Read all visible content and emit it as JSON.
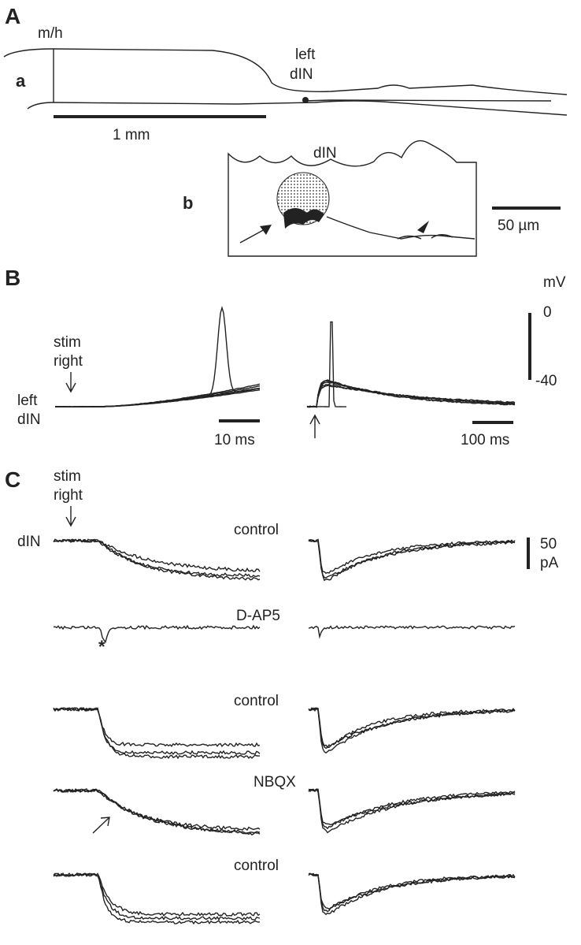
{
  "panel_a": {
    "label": "A",
    "sub_a": {
      "label": "a",
      "marker": "m/h",
      "cell_label": [
        "left",
        "dIN"
      ],
      "scale": "1 mm"
    },
    "sub_b": {
      "label": "b",
      "title": "dIN",
      "scale": "50 µm"
    }
  },
  "panel_b": {
    "label": "B",
    "stim": [
      "stim",
      "right"
    ],
    "cell_label": [
      "left",
      "dIN"
    ],
    "scale_left": "10 ms",
    "scale_right": "100 ms",
    "unit": "mV",
    "scale_top": "0",
    "scale_bottom": "-40"
  },
  "panel_c": {
    "label": "C",
    "stim": [
      "stim",
      "right"
    ],
    "cell_label": "dIN",
    "conditions": [
      "control",
      "D-AP5",
      "control",
      "NBQX",
      "control"
    ],
    "asterisk": "*",
    "scale_value": "50",
    "scale_unit": "pA"
  }
}
